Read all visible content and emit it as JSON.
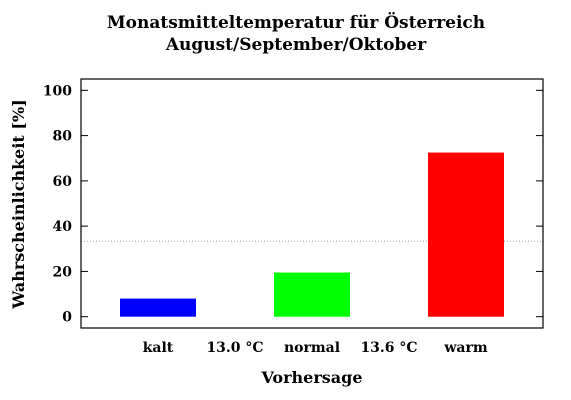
{
  "chart_data": {
    "type": "bar",
    "title": "Monatsmitteltemperatur für Österreich",
    "subtitle": "August/September/Oktober",
    "xlabel": "Vorhersage",
    "ylabel": "Wahrscheinlichkeit [%]",
    "ylim": [
      -5,
      105
    ],
    "yticks": [
      "0",
      "20",
      "40",
      "60",
      "80",
      "100"
    ],
    "x_tick_labels": [
      "kalt",
      "13.0 °C",
      "normal",
      "13.6 °C",
      "warm"
    ],
    "categories": [
      "kalt",
      "normal",
      "warm"
    ],
    "values": [
      8,
      19.5,
      72.5
    ],
    "colors": [
      "#0000ff",
      "#00ff00",
      "#ff0000"
    ],
    "reference_line": 33.3,
    "grid": false
  }
}
